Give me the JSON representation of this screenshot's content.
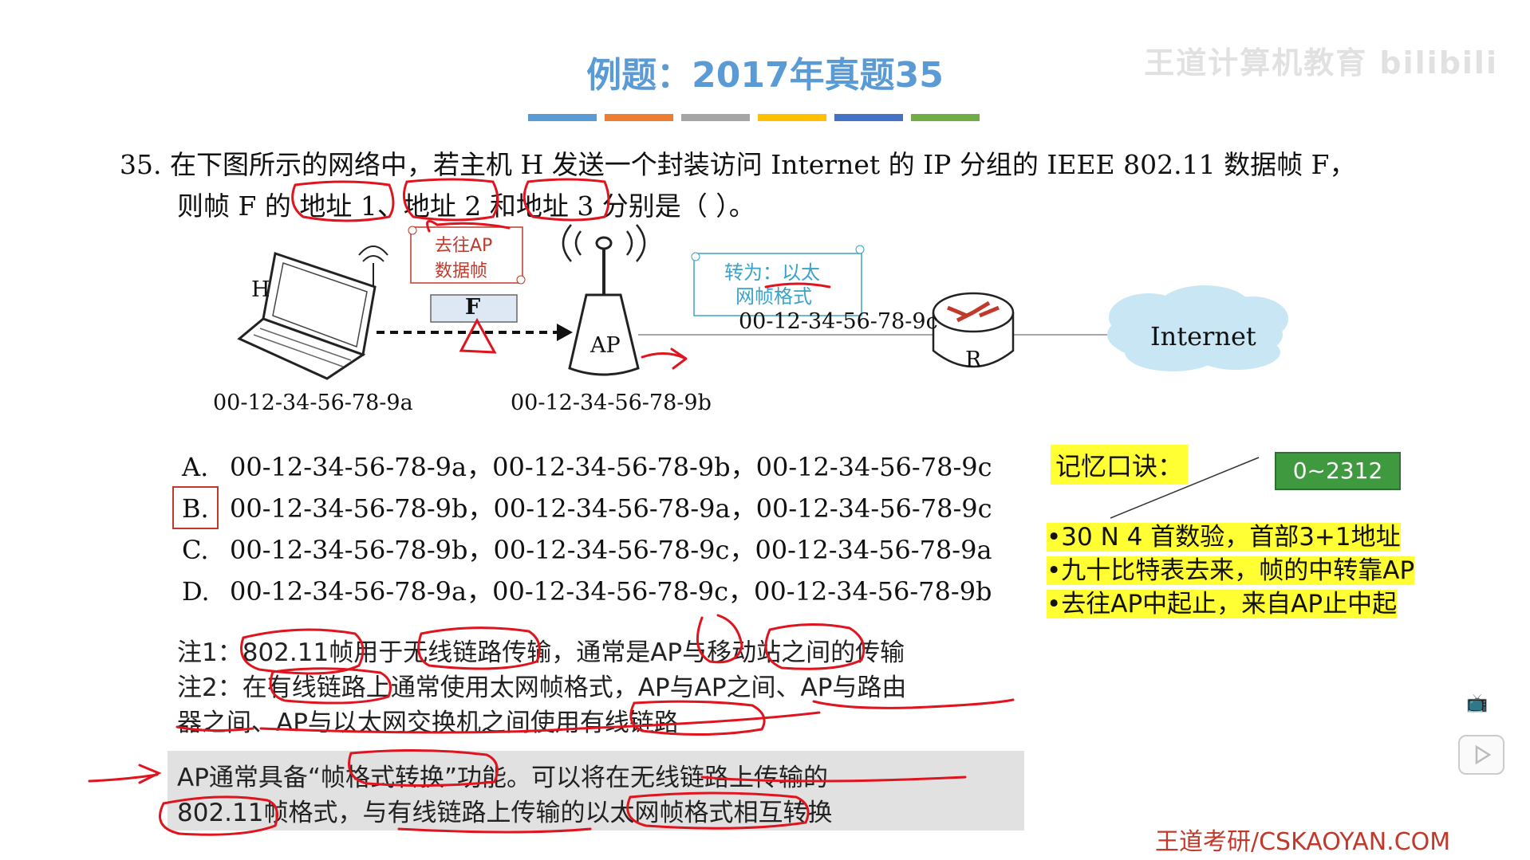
{
  "title": "例题：2017年真题35",
  "watermark": "王道计算机教育 bilibili",
  "colorbar": [
    "#5b9bd5",
    "#ed7d31",
    "#a5a5a5",
    "#ffc000",
    "#4472c4",
    "#70ad47"
  ],
  "question": {
    "line1": "35.  在下图所示的网络中，若主机 H 发送一个封装访问 Internet 的 IP 分组的 IEEE 802.11 数据帧 F，",
    "line2": "则帧 F 的 地址 1、地址 2 和地址 3 分别是（      ）。"
  },
  "diagram": {
    "host_label": "H",
    "frame_label": "F",
    "ap_label": "AP",
    "router_label": "R",
    "internet_label": "Internet",
    "mac_h": "00-12-34-56-78-9a",
    "mac_ap": "00-12-34-56-78-9b",
    "mac_r": "00-12-34-56-78-9c",
    "scroll1_line1": "去往AP",
    "scroll1_line2": "数据帧",
    "scroll2_line1": "转为：以太",
    "scroll2_line2": "网帧格式"
  },
  "options": [
    {
      "letter": "A.",
      "text": "00-12-34-56-78-9a，00-12-34-56-78-9b，00-12-34-56-78-9c"
    },
    {
      "letter": "B.",
      "text": "00-12-34-56-78-9b，00-12-34-56-78-9a，00-12-34-56-78-9c"
    },
    {
      "letter": "C.",
      "text": "00-12-34-56-78-9b，00-12-34-56-78-9c，00-12-34-56-78-9a"
    },
    {
      "letter": "D.",
      "text": "00-12-34-56-78-9a，00-12-34-56-78-9c，00-12-34-56-78-9b"
    }
  ],
  "notes": {
    "n1": "注1：802.11帧用于无线链路传输，通常是AP与移动站之间的传输",
    "n2a": "注2：在有线链路上通常使用太网帧格式，AP与AP之间、AP与路由",
    "n2b": "器之间、AP与以太网交换机之间使用有线链路",
    "box1": "AP通常具备“帧格式转换”功能。可以将在无线链路上传输的",
    "box2": "802.11帧格式，与有线链路上传输的以太网帧格式相互转换"
  },
  "memo": {
    "title": "记忆口诀：",
    "badge": "0~2312",
    "items": [
      "•30 N 4 首数验，首部3+1地址",
      "•九十比特表去来，帧的中转靠AP",
      "•去往AP中起止，来自AP止中起"
    ]
  },
  "footer": "王道考研/CSKAOYAN.COM"
}
